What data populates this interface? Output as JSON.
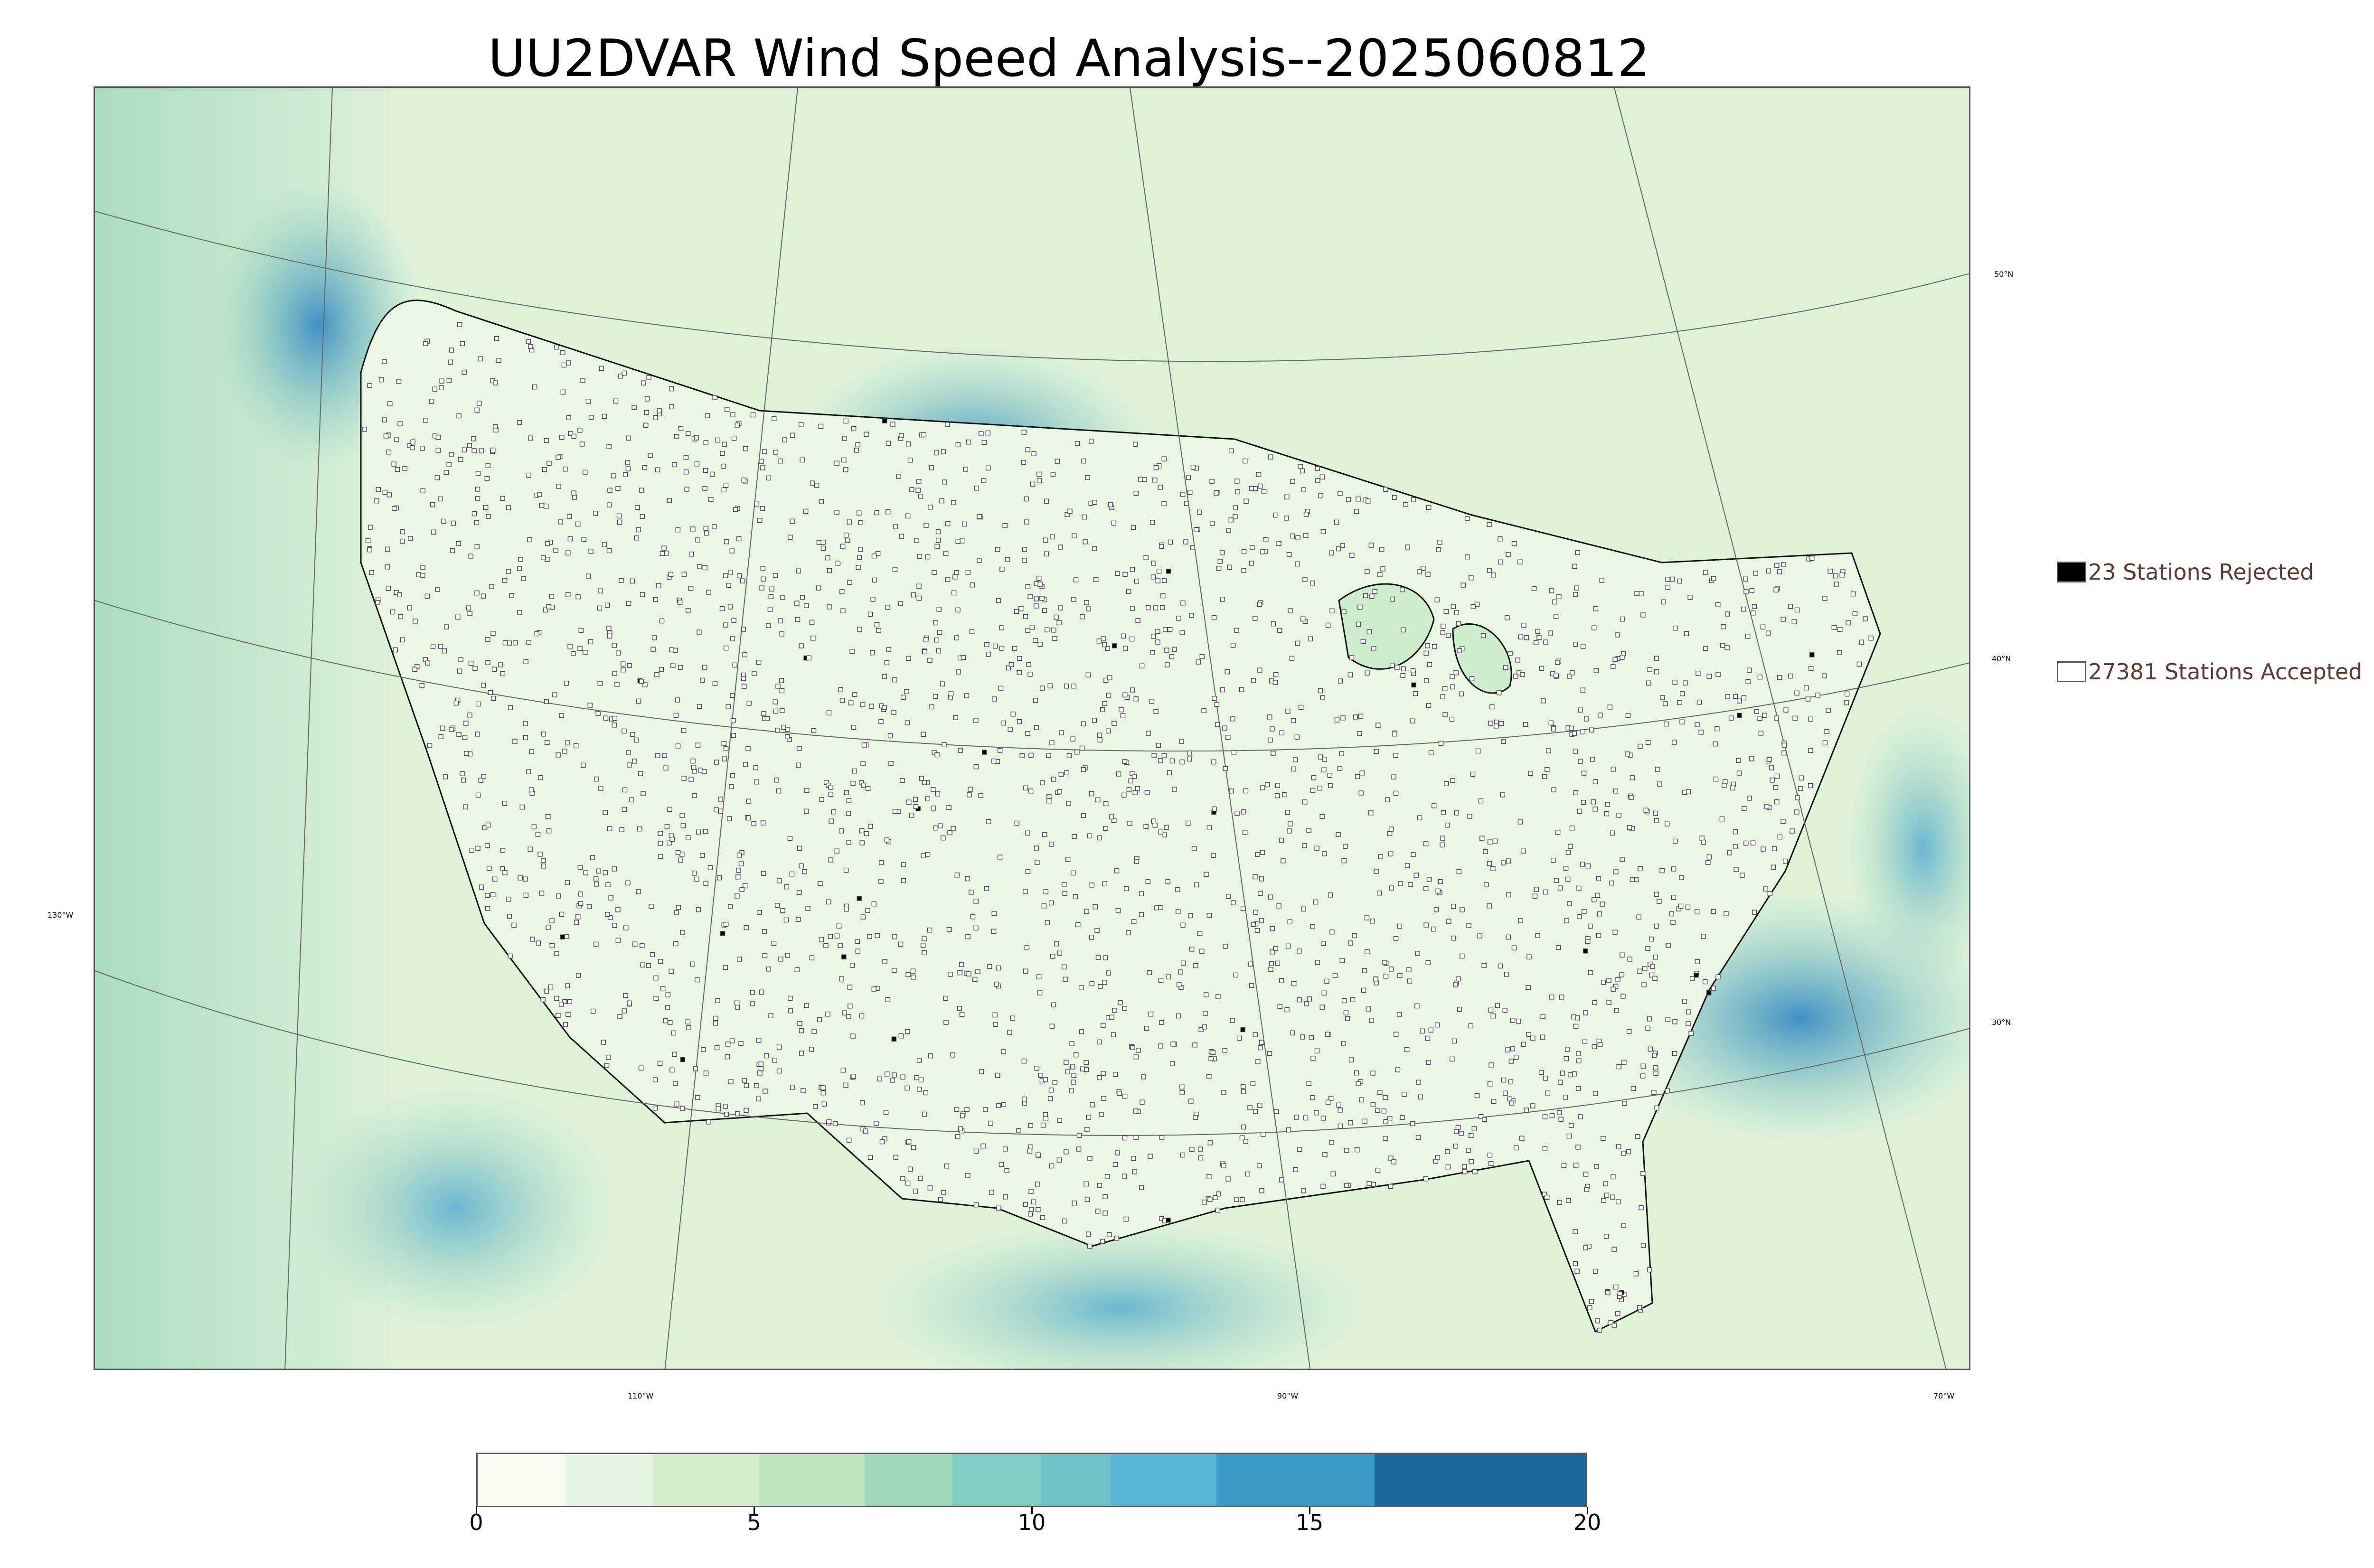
{
  "title": "UU2DVAR Wind Speed Analysis--2025060812",
  "map": {
    "lat_labels": [
      "50°N",
      "40°N",
      "30°N"
    ],
    "lon_labels": [
      "130°W",
      "110°W",
      "90°W",
      "70°W"
    ],
    "background_colors": {
      "land": "#e6f5e0",
      "ocean_low": "#d3eecb",
      "ocean_high": "#3d9cc8"
    }
  },
  "legend": {
    "rejected": {
      "label": "23 Stations Rejected",
      "color": "#000000"
    },
    "accepted": {
      "label": "27381 Stations Accepted",
      "color": "#ffffff"
    }
  },
  "colorbar": {
    "min": 0,
    "max": 20,
    "tick_labels": [
      "0",
      "5",
      "10",
      "15",
      "20"
    ],
    "colors": [
      "#f7fcf0",
      "#e6f5e0",
      "#d3eecd",
      "#bde5bf",
      "#a1d9b8",
      "#7fccc0",
      "#6cc0c8",
      "#5ab4d5",
      "#3b99c6",
      "#1a67a0"
    ]
  }
}
